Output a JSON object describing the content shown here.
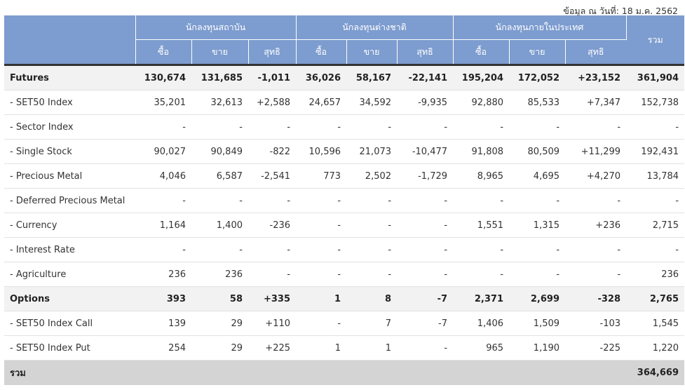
{
  "as_of": "ข้อมูล ณ วันที่: 18 ม.ค. 2562",
  "header": {
    "groups": [
      "นักลงทุนสถาบัน",
      "นักลงทุนต่างชาติ",
      "นักลงทุนภายในประเทศ"
    ],
    "total": "รวม",
    "buy": "ซื้อ",
    "sell": "ขาย",
    "net": "สุทธิ"
  },
  "rows": [
    {
      "label": "Futures",
      "group": true,
      "cells": [
        "130,674",
        "131,685",
        "-1,011",
        "36,026",
        "58,167",
        "-22,141",
        "195,204",
        "172,052",
        "+23,152",
        "361,904"
      ]
    },
    {
      "label": "- SET50 Index",
      "cells": [
        "35,201",
        "32,613",
        "+2,588",
        "24,657",
        "34,592",
        "-9,935",
        "92,880",
        "85,533",
        "+7,347",
        "152,738"
      ]
    },
    {
      "label": "- Sector Index",
      "cells": [
        "-",
        "-",
        "-",
        "-",
        "-",
        "-",
        "-",
        "-",
        "-",
        "-"
      ]
    },
    {
      "label": "- Single Stock",
      "cells": [
        "90,027",
        "90,849",
        "-822",
        "10,596",
        "21,073",
        "-10,477",
        "91,808",
        "80,509",
        "+11,299",
        "192,431"
      ]
    },
    {
      "label": "- Precious Metal",
      "cells": [
        "4,046",
        "6,587",
        "-2,541",
        "773",
        "2,502",
        "-1,729",
        "8,965",
        "4,695",
        "+4,270",
        "13,784"
      ]
    },
    {
      "label": "- Deferred Precious Metal",
      "cells": [
        "-",
        "-",
        "-",
        "-",
        "-",
        "-",
        "-",
        "-",
        "-",
        "-"
      ]
    },
    {
      "label": "- Currency",
      "cells": [
        "1,164",
        "1,400",
        "-236",
        "-",
        "-",
        "-",
        "1,551",
        "1,315",
        "+236",
        "2,715"
      ]
    },
    {
      "label": "- Interest Rate",
      "cells": [
        "-",
        "-",
        "-",
        "-",
        "-",
        "-",
        "-",
        "-",
        "-",
        "-"
      ]
    },
    {
      "label": "- Agriculture",
      "cells": [
        "236",
        "236",
        "-",
        "-",
        "-",
        "-",
        "-",
        "-",
        "-",
        "236"
      ]
    },
    {
      "label": "Options",
      "group": true,
      "cells": [
        "393",
        "58",
        "+335",
        "1",
        "8",
        "-7",
        "2,371",
        "2,699",
        "-328",
        "2,765"
      ]
    },
    {
      "label": "- SET50 Index Call",
      "cells": [
        "139",
        "29",
        "+110",
        "-",
        "7",
        "-7",
        "1,406",
        "1,509",
        "-103",
        "1,545"
      ]
    },
    {
      "label": "- SET50 Index Put",
      "cells": [
        "254",
        "29",
        "+225",
        "1",
        "1",
        "-",
        "965",
        "1,190",
        "-225",
        "1,220"
      ]
    }
  ],
  "grand_total": {
    "label": "รวม",
    "value": "364,669"
  },
  "colors": {
    "header_bg": "#7d9ccf",
    "positive": "#1e8c1e",
    "negative": "#e01010",
    "group_row_bg": "#f2f2f2",
    "total_row_bg": "#d4d4d4"
  }
}
